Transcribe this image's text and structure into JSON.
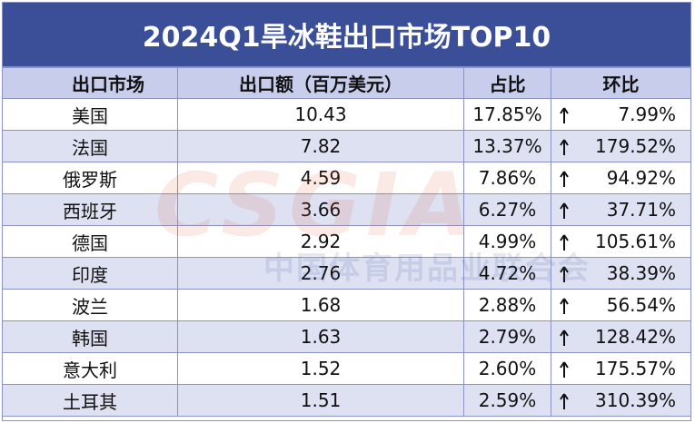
{
  "title": "2024Q1旱冰鞋出口市场TOP10",
  "watermark": {
    "logo": "CSGIA",
    "org": "中国体育用品业联合会"
  },
  "table": {
    "header": [
      "出口市场",
      "出口额（百万美元）",
      "占比",
      "环比"
    ],
    "rows": [
      [
        "美国",
        "10.43",
        "17.85%",
        "7.99%"
      ],
      [
        "法国",
        "7.82",
        "13.37%",
        "179.52%"
      ],
      [
        "俄罗斯",
        "4.59",
        "7.86%",
        "94.92%"
      ],
      [
        "西班牙",
        "3.66",
        "6.27%",
        "37.71%"
      ],
      [
        "德国",
        "2.92",
        "4.99%",
        "105.61%"
      ],
      [
        "印度",
        "2.76",
        "4.72%",
        "38.39%"
      ],
      [
        "波兰",
        "1.68",
        "2.88%",
        "56.54%"
      ],
      [
        "韩国",
        "1.63",
        "2.79%",
        "128.42%"
      ],
      [
        "意大利",
        "1.52",
        "2.60%",
        "175.57%"
      ],
      [
        "土耳其",
        "1.51",
        "2.59%",
        "310.39%"
      ]
    ]
  }
}
